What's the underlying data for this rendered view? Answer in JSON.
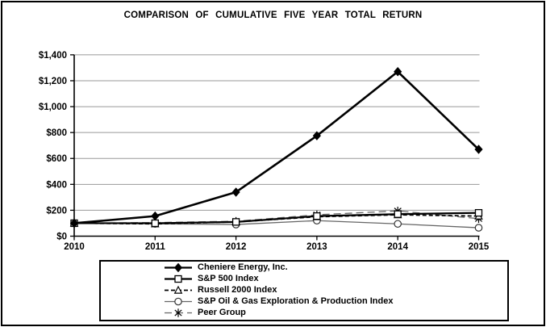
{
  "title": "COMPARISON OF CUMULATIVE FIVE YEAR TOTAL RETURN",
  "chart_data": {
    "type": "line",
    "x": [
      2010,
      2011,
      2012,
      2013,
      2014,
      2015
    ],
    "xtick_labels": [
      "2010",
      "2011",
      "2012",
      "2013",
      "2014",
      "2015"
    ],
    "ytick_labels": [
      "$0",
      "$200",
      "$400",
      "$600",
      "$800",
      "$1,000",
      "$1,200",
      "$1,400"
    ],
    "ylim": [
      0,
      1400
    ],
    "ytick_step": 200,
    "grid": "horizontal",
    "legend_position": "bottom",
    "series": [
      {
        "name": "Cheniere Energy, Inc.",
        "values": [
          100,
          155,
          340,
          775,
          1270,
          670
        ],
        "color": "#000000",
        "line": "solid",
        "line_width": 2.6,
        "marker": "diamond-filled"
      },
      {
        "name": "S&P 500 Index",
        "values": [
          100,
          100,
          110,
          155,
          170,
          180
        ],
        "color": "#000000",
        "line": "solid",
        "line_width": 2.2,
        "marker": "square-open"
      },
      {
        "name": "Russell 2000 Index",
        "values": [
          100,
          95,
          110,
          150,
          165,
          155
        ],
        "color": "#000000",
        "line": "dashed",
        "line_width": 1.8,
        "marker": "triangle-open"
      },
      {
        "name": "S&P Oil & Gas Exploration & Production Index",
        "values": [
          100,
          95,
          90,
          120,
          95,
          65
        ],
        "color": "#666666",
        "line": "solid",
        "line_width": 1.3,
        "marker": "circle-open"
      },
      {
        "name": "Peer Group",
        "values": [
          100,
          105,
          115,
          165,
          195,
          135
        ],
        "color": "#666666",
        "line": "dashed-long",
        "line_width": 1.3,
        "marker": "asterisk"
      }
    ]
  },
  "colors": {
    "background": "#ffffff",
    "frame_border": "#000000",
    "axis": "#000000",
    "gridline": "#999999",
    "legend_border": "#000000"
  }
}
